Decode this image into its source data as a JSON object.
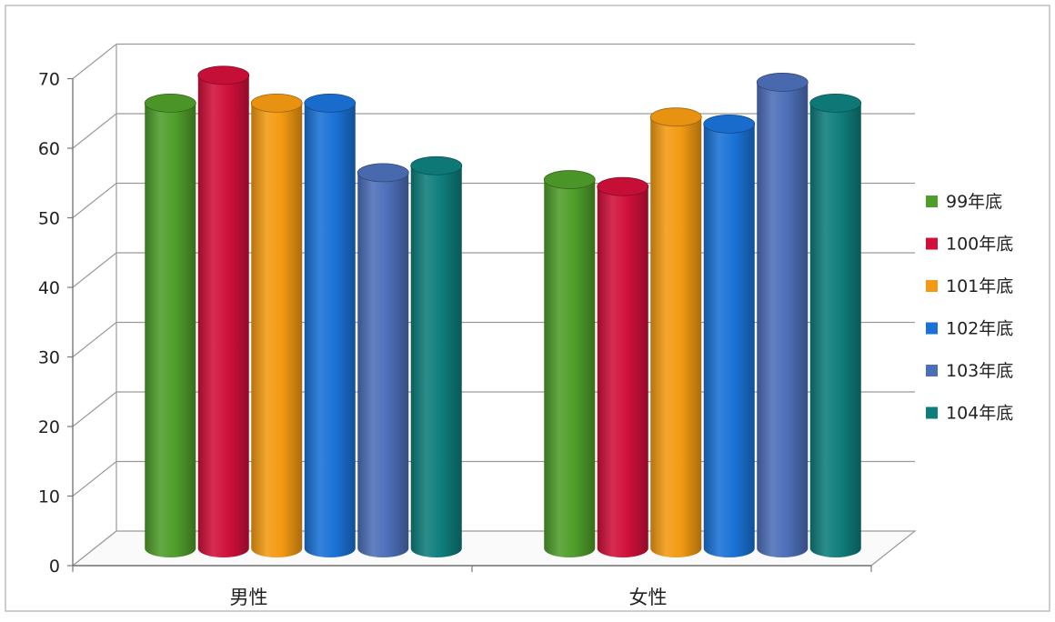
{
  "chart_data": {
    "type": "bar",
    "title": "",
    "xlabel": "",
    "ylabel": "",
    "categories": [
      "男性",
      "女性"
    ],
    "ylim": [
      0,
      70
    ],
    "yticks": [
      0,
      10,
      20,
      30,
      40,
      50,
      60,
      70
    ],
    "grid": true,
    "legend_position": "right",
    "series": [
      {
        "name": "99年底",
        "values": [
          64,
          53
        ],
        "color": "#4f9d2a"
      },
      {
        "name": "100年底",
        "values": [
          68,
          52
        ],
        "color": "#d0103a"
      },
      {
        "name": "101年底",
        "values": [
          64,
          62
        ],
        "color": "#f39a12"
      },
      {
        "name": "102年底",
        "values": [
          64,
          61
        ],
        "color": "#1a72d6"
      },
      {
        "name": "103年底",
        "values": [
          54,
          67
        ],
        "color": "#4d6fb8"
      },
      {
        "name": "104年底",
        "values": [
          55,
          64
        ],
        "color": "#0e7e7c"
      }
    ]
  }
}
